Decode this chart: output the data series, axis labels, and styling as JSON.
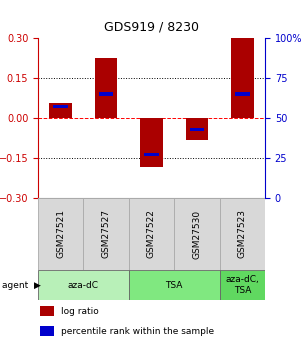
{
  "title": "GDS919 / 8230",
  "samples": [
    "GSM27521",
    "GSM27527",
    "GSM27522",
    "GSM27530",
    "GSM27523"
  ],
  "log_ratios": [
    0.055,
    0.225,
    -0.185,
    -0.082,
    0.3
  ],
  "percentile_ranks": [
    0.57,
    0.65,
    0.27,
    0.43,
    0.65
  ],
  "groups": [
    {
      "label": "aza-dC",
      "indices": [
        0,
        1
      ],
      "color": "#b8f0b8"
    },
    {
      "label": "TSA",
      "indices": [
        2,
        3
      ],
      "color": "#80e880"
    },
    {
      "label": "aza-dC,\nTSA",
      "indices": [
        4
      ],
      "color": "#60d860"
    }
  ],
  "ylim": [
    -0.3,
    0.3
  ],
  "yticks": [
    -0.3,
    -0.15,
    0.0,
    0.15,
    0.3
  ],
  "right_yticks": [
    0,
    25,
    50,
    75,
    100
  ],
  "hlines": [
    -0.15,
    0.0,
    0.15
  ],
  "bar_color": "#aa0000",
  "blue_color": "#0000cc",
  "bar_width": 0.5,
  "background_color": "#ffffff",
  "plot_bg": "#ffffff",
  "left_axis_color": "#cc0000",
  "right_axis_color": "#0000cc",
  "title_fontsize": 9,
  "tick_fontsize": 7,
  "label_fontsize": 6.5,
  "legend_fontsize": 6.5
}
